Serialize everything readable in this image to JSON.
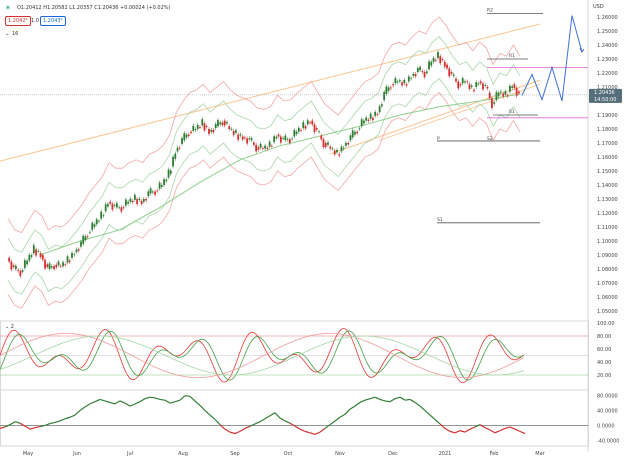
{
  "header": {
    "ohlc": "O1.20412 H1.20582 L1.20357 C1.20436 +0.00024 (+0.02%)",
    "sell_price": "1.2042⁶",
    "spread": "1.0",
    "buy_price": "1.2043⁶",
    "indicator_count": "16"
  },
  "currency_label": "USD",
  "price_tag": {
    "value": "1.20436",
    "countdown": "14:50:00"
  },
  "colors": {
    "bull": "#2e7d32",
    "bear": "#d32f2f",
    "channel": "#f9c48f",
    "bollinger": "#f4a6a6",
    "envelope": "#a9d6a9",
    "ma": "#8ecf8e",
    "level": "#555555",
    "magenta": "#e066e0",
    "projection": "#3f6fd9",
    "tag": "#546e7a"
  },
  "chart_data": [
    {
      "type": "candlestick",
      "panel": "price",
      "y_axis_ticks": [
        "1.26000",
        "1.25000",
        "1.24000",
        "1.23000",
        "1.22000",
        "1.21000",
        "1.20000",
        "1.19000",
        "1.18000",
        "1.17000",
        "1.16000",
        "1.15000",
        "1.14000",
        "1.13000",
        "1.12000",
        "1.11000",
        "1.10000",
        "1.09000",
        "1.08000",
        "1.07000",
        "1.06000",
        "1.05000"
      ],
      "ylim": [
        1.045,
        1.265
      ],
      "x_axis_ticks": [
        "May",
        "Jun",
        "Jul",
        "Aug",
        "Sep",
        "Oct",
        "Nov",
        "Dec",
        "2021",
        "Feb",
        "Mar"
      ],
      "close_path": [
        [
          0,
          1.088
        ],
        [
          4,
          1.08
        ],
        [
          8,
          1.078
        ],
        [
          12,
          1.086
        ],
        [
          16,
          1.094
        ],
        [
          20,
          1.09
        ],
        [
          24,
          1.08
        ],
        [
          28,
          1.083
        ],
        [
          32,
          1.082
        ],
        [
          36,
          1.086
        ],
        [
          40,
          1.092
        ],
        [
          44,
          1.098
        ],
        [
          48,
          1.106
        ],
        [
          52,
          1.112
        ],
        [
          56,
          1.118
        ],
        [
          60,
          1.128
        ],
        [
          64,
          1.124
        ],
        [
          68,
          1.124
        ],
        [
          72,
          1.128
        ],
        [
          76,
          1.13
        ],
        [
          80,
          1.128
        ],
        [
          84,
          1.134
        ],
        [
          88,
          1.136
        ],
        [
          92,
          1.14
        ],
        [
          96,
          1.148
        ],
        [
          100,
          1.164
        ],
        [
          104,
          1.172
        ],
        [
          108,
          1.178
        ],
        [
          112,
          1.18
        ],
        [
          116,
          1.184
        ],
        [
          120,
          1.178
        ],
        [
          124,
          1.182
        ],
        [
          128,
          1.186
        ],
        [
          132,
          1.18
        ],
        [
          136,
          1.176
        ],
        [
          140,
          1.174
        ],
        [
          144,
          1.172
        ],
        [
          148,
          1.167
        ],
        [
          152,
          1.166
        ],
        [
          156,
          1.168
        ],
        [
          160,
          1.176
        ],
        [
          164,
          1.172
        ],
        [
          168,
          1.173
        ],
        [
          172,
          1.178
        ],
        [
          176,
          1.182
        ],
        [
          180,
          1.186
        ],
        [
          184,
          1.178
        ],
        [
          188,
          1.17
        ],
        [
          192,
          1.166
        ],
        [
          196,
          1.162
        ],
        [
          200,
          1.168
        ],
        [
          204,
          1.174
        ],
        [
          208,
          1.18
        ],
        [
          212,
          1.186
        ],
        [
          216,
          1.188
        ],
        [
          220,
          1.192
        ],
        [
          224,
          1.205
        ],
        [
          228,
          1.212
        ],
        [
          232,
          1.214
        ],
        [
          236,
          1.212
        ],
        [
          240,
          1.218
        ],
        [
          244,
          1.222
        ],
        [
          248,
          1.22
        ],
        [
          252,
          1.228
        ],
        [
          256,
          1.232
        ],
        [
          260,
          1.226
        ],
        [
          264,
          1.218
        ],
        [
          268,
          1.212
        ],
        [
          272,
          1.214
        ],
        [
          276,
          1.208
        ],
        [
          280,
          1.214
        ],
        [
          284,
          1.21
        ],
        [
          288,
          1.198
        ],
        [
          292,
          1.206
        ],
        [
          296,
          1.204
        ],
        [
          300,
          1.212
        ],
        [
          304,
          1.204
        ]
      ],
      "levels": [
        {
          "name": "R2",
          "value": 1.2625
        },
        {
          "name": "R1",
          "value": 1.23
        },
        {
          "name": "S1",
          "value": 1.19
        },
        {
          "name": "P",
          "value": 1.1715
        },
        {
          "name": "S2",
          "value": 1.1715
        },
        {
          "name": "S1",
          "value": 1.113
        }
      ],
      "projection_path": [
        [
          1.204,
          0
        ],
        [
          1.219,
          1
        ],
        [
          1.201,
          2
        ],
        [
          1.224,
          3
        ],
        [
          1.2,
          4
        ],
        [
          1.261,
          5
        ],
        [
          1.235,
          6
        ]
      ]
    },
    {
      "type": "line",
      "panel": "stochastic",
      "indicator_label": "2",
      "y_axis_ticks": [
        "100.00",
        "80.00",
        "60.00",
        "40.00",
        "20.00"
      ],
      "ylim": [
        0,
        100
      ]
    },
    {
      "type": "area",
      "panel": "oscillator",
      "y_axis_ticks": [
        "80.0000",
        "40.0000",
        "0.0000",
        "-40.0000"
      ],
      "ylim": [
        -50,
        90
      ],
      "values": [
        -8,
        -4,
        2,
        10,
        6,
        -2,
        -10,
        -6,
        -3,
        0,
        5,
        8,
        12,
        18,
        22,
        28,
        40,
        50,
        58,
        64,
        70,
        66,
        62,
        58,
        66,
        60,
        52,
        58,
        64,
        72,
        76,
        74,
        70,
        68,
        60,
        64,
        68,
        80,
        78,
        66,
        54,
        40,
        28,
        16,
        2,
        -10,
        -18,
        -22,
        -16,
        -8,
        -2,
        4,
        10,
        18,
        26,
        34,
        20,
        12,
        6,
        -2,
        -10,
        -16,
        -20,
        -24,
        -18,
        -8,
        2,
        12,
        22,
        30,
        44,
        52,
        62,
        68,
        72,
        76,
        70,
        66,
        64,
        72,
        76,
        68,
        70,
        62,
        52,
        40,
        28,
        16,
        4,
        -8,
        -16,
        -20,
        -14,
        -18,
        -10,
        -4,
        2,
        -6,
        -12,
        -20,
        -14,
        -8,
        -4,
        -10,
        -16,
        -22
      ]
    }
  ]
}
